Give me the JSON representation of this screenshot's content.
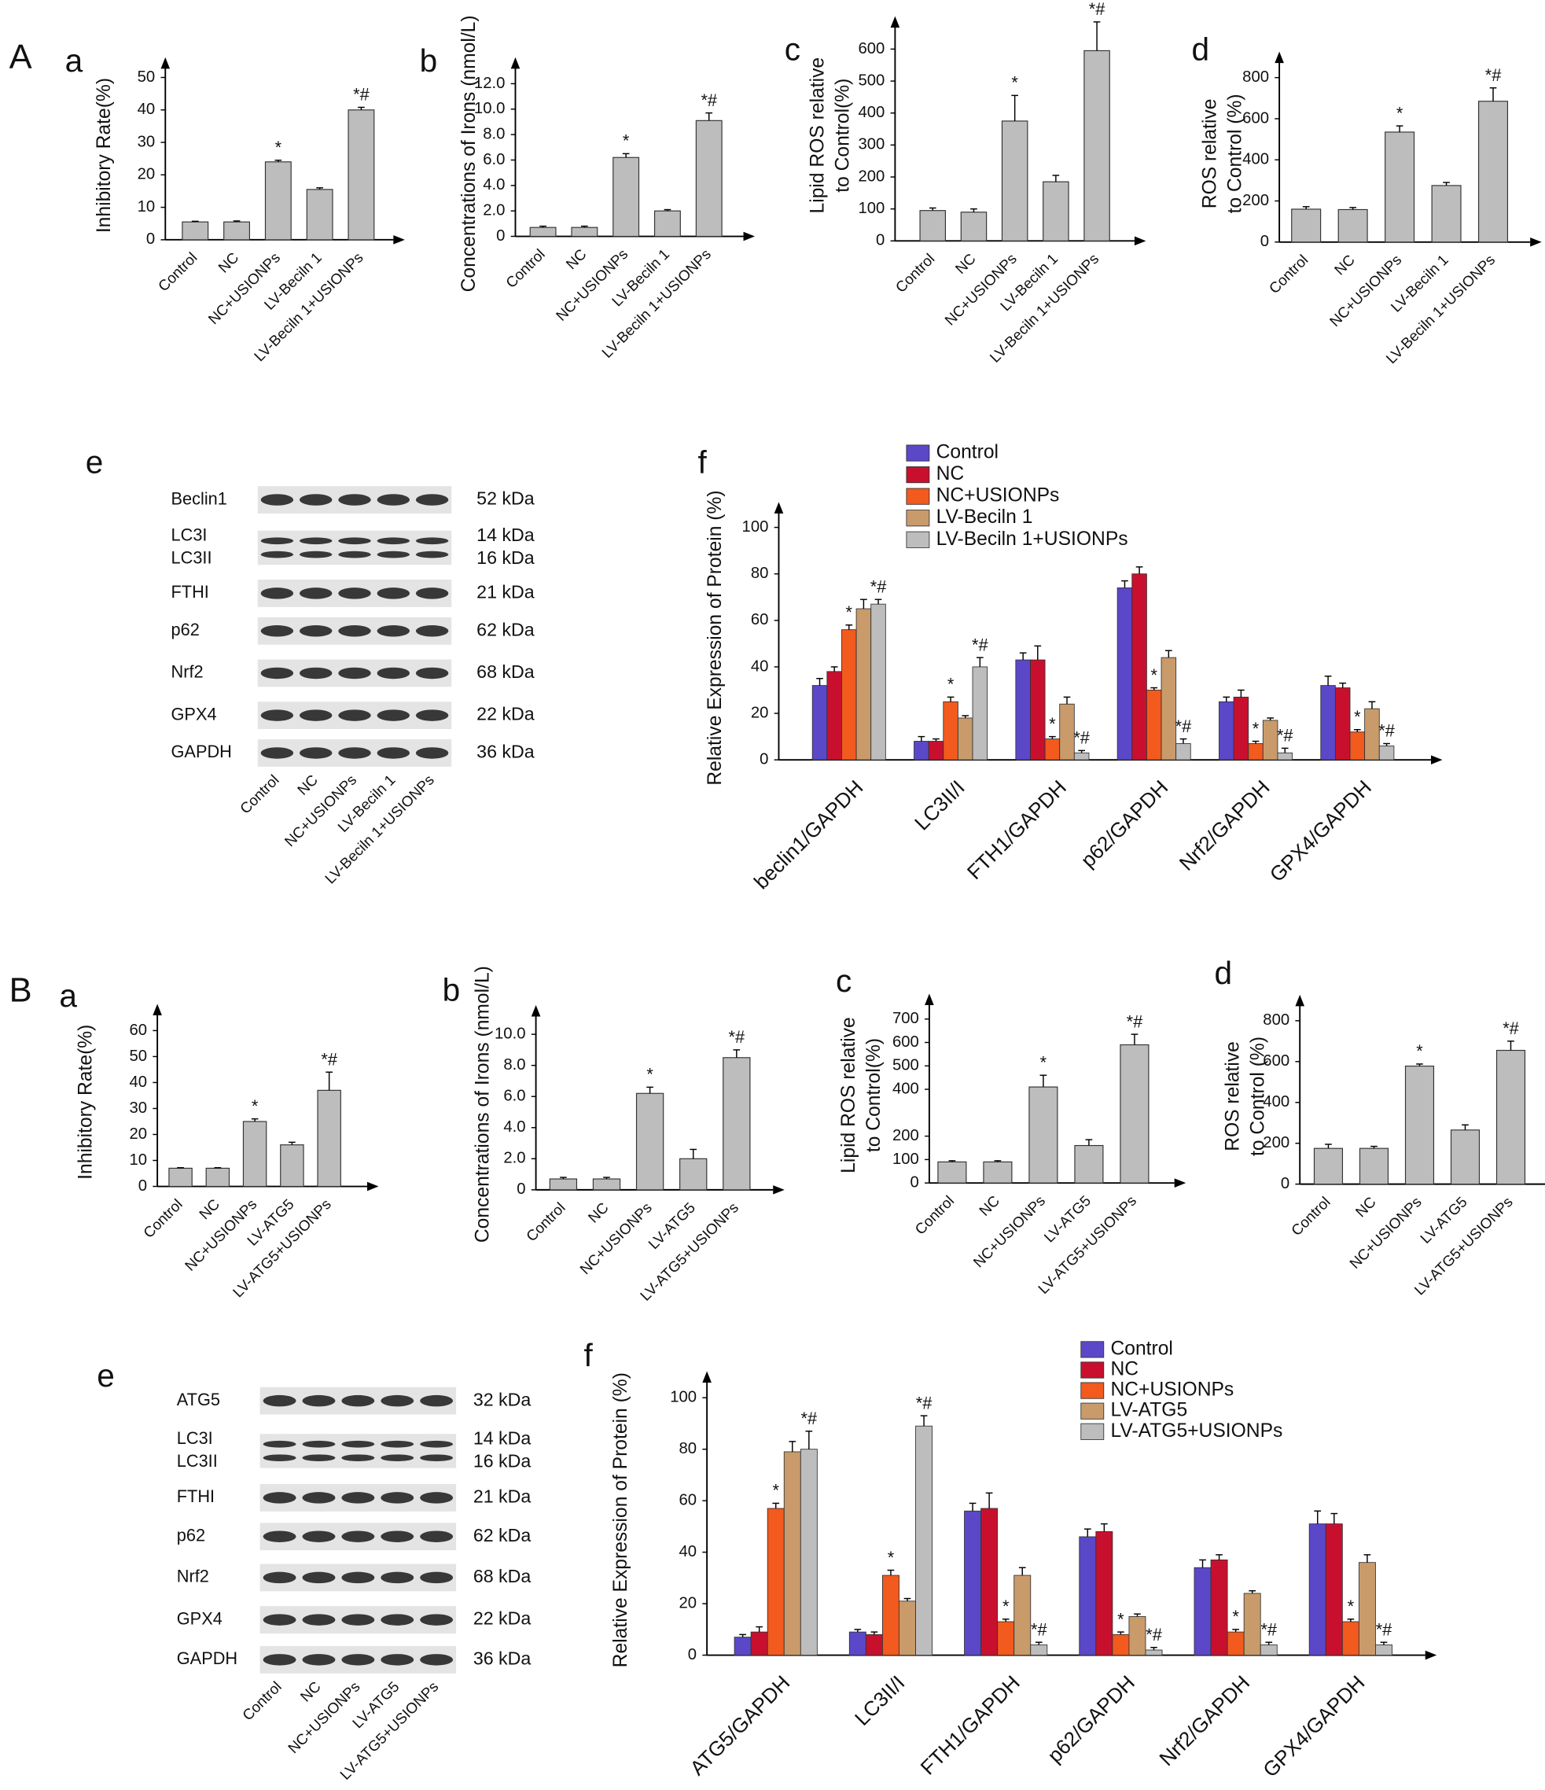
{
  "sections": [
    "A",
    "B"
  ],
  "chart_data": [
    {
      "type": "bar",
      "panel": "a",
      "ylabel": [
        "Inhibitory Rate(%)"
      ],
      "categories": [
        "Control",
        "NC",
        "NC+USIONPs",
        "LV-Beciln 1",
        "LV-Beciln 1+USIONPs"
      ],
      "values": [
        5.5,
        5.5,
        24,
        15.5,
        40
      ],
      "errors": [
        0.2,
        0.3,
        0.5,
        0.5,
        0.8
      ],
      "markers": [
        null,
        null,
        "*",
        null,
        "*#"
      ],
      "color": "#bdbdbd",
      "ylim": [
        0,
        52
      ],
      "yticks": [
        0,
        10,
        20,
        30,
        40,
        50
      ]
    },
    {
      "type": "bar",
      "panel": "b",
      "ylabel": [
        "Concentrations of Irons (nmol/L)"
      ],
      "categories": [
        "Control",
        "NC",
        "NC+USIONPs",
        "LV-Beciln 1",
        "LV-Beciln 1+USIONPs"
      ],
      "values": [
        0.7,
        0.7,
        6.2,
        2.0,
        9.1
      ],
      "errors": [
        0.1,
        0.1,
        0.3,
        0.1,
        0.6
      ],
      "markers": [
        null,
        null,
        "*",
        null,
        "*#"
      ],
      "color": "#bdbdbd",
      "ylim": [
        0,
        13
      ],
      "yticks": [
        0,
        {
          "value": 2,
          "label": "2.0"
        },
        {
          "value": 4,
          "label": "4.0"
        },
        {
          "value": 6,
          "label": "6.0"
        },
        {
          "value": 8,
          "label": "8.0"
        },
        {
          "value": 10,
          "label": "10.0"
        },
        {
          "value": 12,
          "label": "12.0"
        }
      ]
    },
    {
      "type": "bar",
      "panel": "c",
      "ylabel": [
        "Lipid ROS relative",
        "to Control(%)"
      ],
      "categories": [
        "Control",
        "NC",
        "NC+USIONPs",
        "LV-Beciln 1",
        "LV-Beciln 1+USIONPs"
      ],
      "values": [
        95,
        90,
        375,
        185,
        595
      ],
      "errors": [
        8,
        10,
        80,
        20,
        90
      ],
      "markers": [
        null,
        null,
        "*",
        null,
        "*#"
      ],
      "color": "#bdbdbd",
      "ylim": [
        0,
        660
      ],
      "yticks": [
        0,
        100,
        200,
        300,
        400,
        500,
        600
      ]
    },
    {
      "type": "bar",
      "panel": "d",
      "ylabel": [
        "ROS relative",
        "to Control (%)"
      ],
      "categories": [
        "Control",
        "NC",
        "NC+USIONPs",
        "LV-Beciln 1",
        "LV-Beciln 1+USIONPs"
      ],
      "values": [
        160,
        158,
        535,
        275,
        685
      ],
      "errors": [
        12,
        10,
        30,
        15,
        65
      ],
      "markers": [
        null,
        null,
        "*",
        null,
        "*#"
      ],
      "color": "#bdbdbd",
      "ylim": [
        0,
        860
      ],
      "yticks": [
        0,
        200,
        400,
        600,
        800
      ]
    },
    {
      "type": "grouped_bar",
      "panel": "f",
      "ylabel": [
        "Relative Expression  of Protein (%)"
      ],
      "categories": [
        "beclin1/GAPDH",
        "LC3II/I",
        "FTH1/GAPDH",
        "p62/GAPDH",
        "Nrf2/GAPDH",
        "GPX4/GAPDH"
      ],
      "series": [
        {
          "name": "Control",
          "color": "#5a48c8",
          "values": [
            32,
            8,
            43,
            74,
            25,
            32
          ],
          "errors": [
            3,
            2,
            3,
            3,
            2,
            4
          ]
        },
        {
          "name": "NC",
          "color": "#c8102e",
          "values": [
            38,
            8,
            43,
            80,
            27,
            31
          ],
          "errors": [
            2,
            1,
            6,
            3,
            3,
            2
          ]
        },
        {
          "name": "NC+USIONPs",
          "color": "#f25a1e",
          "values": [
            56,
            25,
            9,
            30,
            7,
            12
          ],
          "errors": [
            2,
            2,
            1,
            1,
            1,
            1
          ],
          "markers": [
            "*",
            "*",
            "*",
            "*",
            "*",
            "*"
          ]
        },
        {
          "name": "LV-Beciln 1",
          "color": "#c99b6b",
          "values": [
            65,
            18,
            24,
            44,
            17,
            22
          ],
          "errors": [
            4,
            1,
            3,
            3,
            1,
            3
          ]
        },
        {
          "name": "LV-Beciln 1+USIONPs",
          "color": "#bdbdbd",
          "values": [
            67,
            40,
            3,
            7,
            3,
            6
          ],
          "errors": [
            2,
            4,
            1,
            2,
            2,
            1
          ],
          "markers": [
            "*#",
            "*#",
            "*#",
            "*#",
            "*#",
            "*#"
          ]
        }
      ],
      "ylim": [
        0,
        105
      ],
      "yticks": [
        0,
        20,
        40,
        60,
        80,
        100
      ]
    },
    {
      "type": "bar",
      "panel": "a",
      "ylabel": [
        "Inhibitory Rate(%)"
      ],
      "categories": [
        "Control",
        "NC",
        "NC+USIONPs",
        "LV-ATG5",
        "LV-ATG5+USIONPs"
      ],
      "values": [
        7,
        7,
        25,
        16,
        37
      ],
      "errors": [
        0.2,
        0.2,
        1,
        1,
        7
      ],
      "markers": [
        null,
        null,
        "*",
        null,
        "*#"
      ],
      "color": "#bdbdbd",
      "ylim": [
        0,
        65
      ],
      "yticks": [
        0,
        10,
        20,
        30,
        40,
        50,
        60
      ]
    },
    {
      "type": "bar",
      "panel": "b",
      "ylabel": [
        "Concentrations of Irons (nmol/L)"
      ],
      "categories": [
        "Control",
        "NC",
        "NC+USIONPs",
        "LV-ATG5",
        "LV-ATG5+USIONPs"
      ],
      "values": [
        0.7,
        0.7,
        6.2,
        2.0,
        8.5
      ],
      "errors": [
        0.1,
        0.1,
        0.4,
        0.6,
        0.5
      ],
      "markers": [
        null,
        null,
        "*",
        null,
        "*#"
      ],
      "color": "#bdbdbd",
      "ylim": [
        0,
        11
      ],
      "yticks": [
        0,
        {
          "value": 2,
          "label": "2.0"
        },
        {
          "value": 4,
          "label": "4.0"
        },
        {
          "value": 6,
          "label": "6.0"
        },
        {
          "value": 8,
          "label": "8.0"
        },
        {
          "value": 10,
          "label": "10.0"
        }
      ]
    },
    {
      "type": "bar",
      "panel": "c",
      "ylabel": [
        "Lipid ROS relative",
        "to Control(%)"
      ],
      "categories": [
        "Control",
        "NC",
        "NC+USIONPs",
        "LV-ATG5",
        "LV-ATG5+USIONPs"
      ],
      "values": [
        90,
        90,
        410,
        160,
        590
      ],
      "errors": [
        5,
        5,
        50,
        25,
        45
      ],
      "markers": [
        null,
        null,
        "*",
        null,
        "*#"
      ],
      "color": "#bdbdbd",
      "ylim": [
        0,
        750
      ],
      "yticks": [
        0,
        100,
        200,
        400,
        500,
        600,
        700
      ]
    },
    {
      "type": "bar",
      "panel": "d",
      "ylabel": [
        "ROS relative",
        "to Control (%)"
      ],
      "categories": [
        "Control",
        "NC",
        "NC+USIONPs",
        "LV-ATG5",
        "LV-ATG5+USIONPs"
      ],
      "values": [
        175,
        175,
        578,
        265,
        655
      ],
      "errors": [
        20,
        10,
        10,
        25,
        45
      ],
      "markers": [
        null,
        null,
        "*",
        null,
        "*#"
      ],
      "color": "#bdbdbd",
      "ylim": [
        0,
        860
      ],
      "yticks": [
        0,
        200,
        400,
        600,
        800
      ]
    },
    {
      "type": "grouped_bar",
      "panel": "f",
      "ylabel": [
        "Relative Expression  of Protein (%)"
      ],
      "categories": [
        "ATG5/GAPDH",
        "LC3II/I",
        "FTH1/GAPDH",
        "p62/GAPDH",
        "Nrf2/GAPDH",
        "GPX4/GAPDH"
      ],
      "series": [
        {
          "name": "Control",
          "color": "#5a48c8",
          "values": [
            7,
            9,
            56,
            46,
            34,
            51
          ],
          "errors": [
            1,
            1,
            3,
            3,
            3,
            5
          ]
        },
        {
          "name": "NC",
          "color": "#c8102e",
          "values": [
            9,
            8,
            57,
            48,
            37,
            51
          ],
          "errors": [
            2,
            1,
            6,
            3,
            2,
            4
          ]
        },
        {
          "name": "NC+USIONPs",
          "color": "#f25a1e",
          "values": [
            57,
            31,
            13,
            8,
            9,
            13
          ],
          "errors": [
            2,
            2,
            1,
            1,
            1,
            1
          ],
          "markers": [
            "*",
            "*",
            "*",
            "*",
            "*",
            "*"
          ]
        },
        {
          "name": "LV-ATG5",
          "color": "#c99b6b",
          "values": [
            79,
            21,
            31,
            15,
            24,
            36
          ],
          "errors": [
            4,
            1,
            3,
            1,
            1,
            3
          ]
        },
        {
          "name": "LV-ATG5+USIONPs",
          "color": "#bdbdbd",
          "values": [
            80,
            89,
            4,
            2,
            4,
            4
          ],
          "errors": [
            7,
            4,
            1,
            1,
            1,
            1
          ],
          "markers": [
            "*#",
            "*#",
            "*#",
            "*#",
            "*#",
            "*#"
          ]
        }
      ],
      "ylim": [
        0,
        105
      ],
      "yticks": [
        0,
        20,
        40,
        60,
        80,
        100
      ]
    }
  ],
  "blots": [
    {
      "panel": "e",
      "rows": [
        {
          "names": [
            "Beclin1"
          ],
          "kda": [
            "52 kDa"
          ]
        },
        {
          "names": [
            "LC3I",
            "LC3II"
          ],
          "kda": [
            "14 kDa",
            "16 kDa"
          ]
        },
        {
          "names": [
            "FTHI"
          ],
          "kda": [
            "21 kDa"
          ]
        },
        {
          "names": [
            "p62"
          ],
          "kda": [
            "62 kDa"
          ]
        },
        {
          "names": [
            "Nrf2"
          ],
          "kda": [
            "68 kDa"
          ]
        },
        {
          "names": [
            "GPX4"
          ],
          "kda": [
            "22 kDa"
          ]
        },
        {
          "names": [
            "GAPDH"
          ],
          "kda": [
            "36 kDa"
          ]
        }
      ],
      "lanes": [
        "Control",
        "NC",
        "NC+USIONPs",
        "LV-Beciln 1",
        "LV-Beciln 1+USIONPs"
      ]
    },
    {
      "panel": "e",
      "rows": [
        {
          "names": [
            "ATG5"
          ],
          "kda": [
            "32 kDa"
          ]
        },
        {
          "names": [
            "LC3I",
            "LC3II"
          ],
          "kda": [
            "14 kDa",
            "16 kDa"
          ]
        },
        {
          "names": [
            "FTHI"
          ],
          "kda": [
            "21 kDa"
          ]
        },
        {
          "names": [
            "p62"
          ],
          "kda": [
            "62 kDa"
          ]
        },
        {
          "names": [
            "Nrf2"
          ],
          "kda": [
            "68 kDa"
          ]
        },
        {
          "names": [
            "GPX4"
          ],
          "kda": [
            "22 kDa"
          ]
        },
        {
          "names": [
            "GAPDH"
          ],
          "kda": [
            "36 kDa"
          ]
        }
      ],
      "lanes": [
        "Control",
        "NC",
        "NC+USIONPs",
        "LV-ATG5",
        "LV-ATG5+USIONPs"
      ]
    }
  ]
}
